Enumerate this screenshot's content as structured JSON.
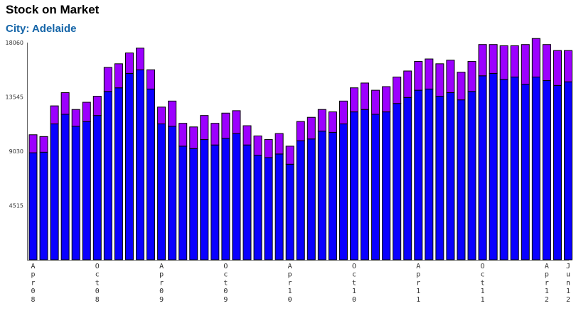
{
  "header": {
    "title": "Stock on Market",
    "subtitle": "City: Adelaide"
  },
  "colors": {
    "lower": "#0a00ff",
    "upper": "#9c00ff",
    "stroke": "#000000",
    "title": "#000000",
    "subtitle": "#1565a8"
  },
  "chart_data": {
    "type": "bar",
    "stacked": true,
    "title": "Stock on Market",
    "subtitle": "City: Adelaide",
    "ylim": [
      0,
      18060
    ],
    "yticks": [
      "18060",
      "13545",
      "9030",
      "4515"
    ],
    "ytick_values": [
      18060,
      13545,
      9030,
      4515
    ],
    "xtick_labels": [
      {
        "index": 0,
        "label": "Apr 08"
      },
      {
        "index": 6,
        "label": "Oct 08"
      },
      {
        "index": 12,
        "label": "Apr 09"
      },
      {
        "index": 18,
        "label": "Oct 09"
      },
      {
        "index": 24,
        "label": "Apr 10"
      },
      {
        "index": 30,
        "label": "Oct 10"
      },
      {
        "index": 36,
        "label": "Apr 11"
      },
      {
        "index": 42,
        "label": "Oct 11"
      },
      {
        "index": 48,
        "label": "Apr 12"
      },
      {
        "index": 50,
        "label": "Jun 12"
      }
    ],
    "categories": [
      "Apr 08",
      "May 08",
      "Jun 08",
      "Jul 08",
      "Aug 08",
      "Sep 08",
      "Oct 08",
      "Nov 08",
      "Dec 08",
      "Jan 09",
      "Feb 09",
      "Mar 09",
      "Apr 09",
      "May 09",
      "Jun 09",
      "Jul 09",
      "Aug 09",
      "Sep 09",
      "Oct 09",
      "Nov 09",
      "Dec 09",
      "Jan 10",
      "Feb 10",
      "Mar 10",
      "Apr 10",
      "May 10",
      "Jun 10",
      "Jul 10",
      "Aug 10",
      "Sep 10",
      "Oct 10",
      "Nov 10",
      "Dec 10",
      "Jan 11",
      "Feb 11",
      "Mar 11",
      "Apr 11",
      "May 11",
      "Jun 11",
      "Jul 11",
      "Aug 11",
      "Sep 11",
      "Oct 11",
      "Nov 11",
      "Dec 11",
      "Jan 12",
      "Feb 12",
      "Mar 12",
      "Apr 12",
      "May 12",
      "Jun 12"
    ],
    "series": [
      {
        "values": [
          8900,
          8950,
          11300,
          12100,
          11100,
          11500,
          12000,
          14000,
          14300,
          15500,
          15800,
          14200,
          11300,
          11100,
          9450,
          9250,
          10000,
          9550,
          10100,
          10500,
          9550,
          8700,
          8500,
          8800,
          7950,
          9900,
          10050,
          10700,
          10600,
          11300,
          12300,
          12500,
          12100,
          12300,
          13000,
          13500,
          14100,
          14200,
          13600,
          13900,
          13300,
          14000,
          15300,
          15500,
          15000,
          15200,
          14600,
          15200,
          14900,
          14500,
          14800
        ]
      },
      {
        "values": [
          1500,
          1300,
          1500,
          1800,
          1400,
          1600,
          1600,
          2000,
          2000,
          1700,
          1800,
          1600,
          1400,
          2100,
          1900,
          1800,
          2000,
          1800,
          2100,
          1900,
          1600,
          1600,
          1500,
          1700,
          1500,
          1600,
          1800,
          1800,
          1700,
          1900,
          2000,
          2200,
          2000,
          2100,
          2200,
          2200,
          2400,
          2500,
          2700,
          2700,
          2300,
          2500,
          2600,
          2400,
          2800,
          2600,
          3300,
          3200,
          3000,
          2900,
          2600
        ]
      }
    ]
  }
}
